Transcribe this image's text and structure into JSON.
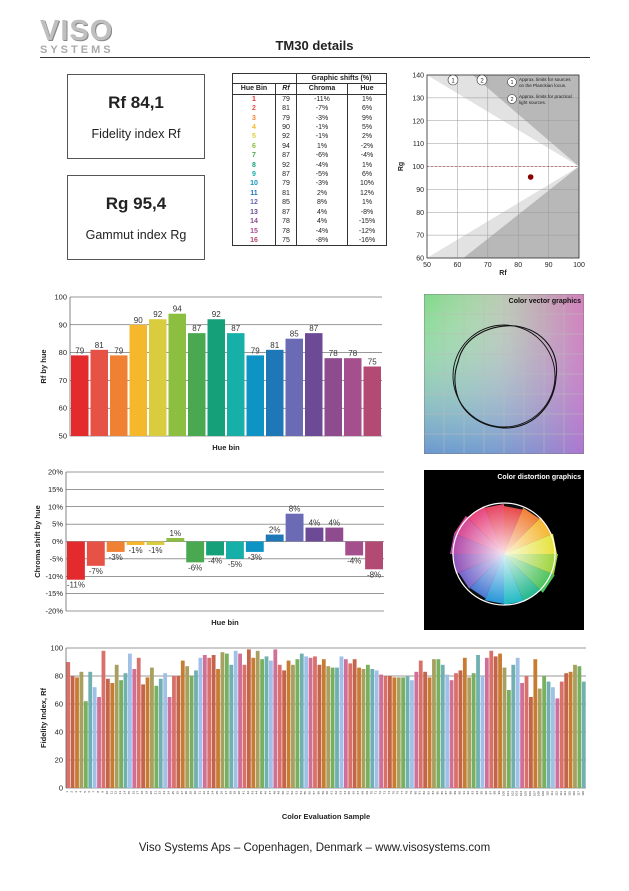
{
  "logo": {
    "line1": "VISO",
    "line2": "SYSTEMS"
  },
  "header": {
    "title": "TM30 details"
  },
  "rf_box": {
    "value": "Rf 84,1",
    "label": "Fidelity index Rf"
  },
  "rg_box": {
    "value": "Rg 95,4",
    "label": "Gammut index Rg"
  },
  "hue_table": {
    "group_header": "Graphic shifts (%)",
    "col_bin": "Hue Bin",
    "col_rf": "Rf",
    "col_chroma": "Chroma",
    "col_hue": "Hue",
    "rows": [
      {
        "bin": "1",
        "rf": "79",
        "chroma": "-11%",
        "hue": "1%"
      },
      {
        "bin": "2",
        "rf": "81",
        "chroma": "-7%",
        "hue": "6%"
      },
      {
        "bin": "3",
        "rf": "79",
        "chroma": "-3%",
        "hue": "9%"
      },
      {
        "bin": "4",
        "rf": "90",
        "chroma": "-1%",
        "hue": "5%"
      },
      {
        "bin": "5",
        "rf": "92",
        "chroma": "-1%",
        "hue": "2%"
      },
      {
        "bin": "6",
        "rf": "94",
        "chroma": "1%",
        "hue": "-2%"
      },
      {
        "bin": "7",
        "rf": "87",
        "chroma": "-6%",
        "hue": "-4%"
      },
      {
        "bin": "8",
        "rf": "92",
        "chroma": "-4%",
        "hue": "1%"
      },
      {
        "bin": "9",
        "rf": "87",
        "chroma": "-5%",
        "hue": "6%"
      },
      {
        "bin": "10",
        "rf": "79",
        "chroma": "-3%",
        "hue": "10%"
      },
      {
        "bin": "11",
        "rf": "81",
        "chroma": "2%",
        "hue": "12%"
      },
      {
        "bin": "12",
        "rf": "85",
        "chroma": "8%",
        "hue": "1%"
      },
      {
        "bin": "13",
        "rf": "87",
        "chroma": "4%",
        "hue": "-8%"
      },
      {
        "bin": "14",
        "rf": "78",
        "chroma": "4%",
        "hue": "-15%"
      },
      {
        "bin": "15",
        "rf": "78",
        "chroma": "-4%",
        "hue": "-12%"
      },
      {
        "bin": "16",
        "rf": "75",
        "chroma": "-8%",
        "hue": "-16%"
      }
    ]
  },
  "hue_colors": [
    "#e32b2e",
    "#e65245",
    "#f08133",
    "#f5b72c",
    "#d9cd3f",
    "#8cbf3f",
    "#4aa850",
    "#16a07a",
    "#17b0a8",
    "#0e94c4",
    "#1e78b7",
    "#6a6bb4",
    "#6d4a96",
    "#8e4c8f",
    "#a64f8d",
    "#b24a74"
  ],
  "chart_data": [
    {
      "type": "scatter",
      "xlabel": "Rf",
      "ylabel": "Rg",
      "xlim": [
        50,
        100
      ],
      "ylim": [
        60,
        140
      ],
      "xticks": [
        50,
        60,
        70,
        80,
        90,
        100
      ],
      "yticks": [
        60,
        70,
        80,
        90,
        100,
        110,
        120,
        130,
        140
      ],
      "points": [
        {
          "x": 84.1,
          "y": 95.4
        }
      ],
      "reference_line_y": 100,
      "legend": [
        {
          "marker": "1",
          "text": "Approx. limits for sources on the Planckian locus."
        },
        {
          "marker": "2",
          "text": "Approx. limits for practical light sources."
        }
      ],
      "markers": [
        "1",
        "2"
      ]
    },
    {
      "type": "bar",
      "xlabel": "Hue bin",
      "ylabel": "Rf by hue",
      "ylim": [
        50,
        100
      ],
      "yticks": [
        50,
        60,
        70,
        80,
        90,
        100
      ],
      "values": [
        79,
        81,
        79,
        90,
        92,
        94,
        87,
        92,
        87,
        79,
        81,
        85,
        87,
        78,
        78,
        75
      ],
      "labels": [
        "79",
        "81",
        "79",
        "90",
        "92",
        "94",
        "87",
        "92",
        "87",
        "79",
        "81",
        "85",
        "87",
        "78",
        "78",
        "75"
      ]
    },
    {
      "type": "bar",
      "xlabel": "Hue bin",
      "ylabel": "Chroma shift by hue",
      "ylim": [
        -20,
        20
      ],
      "yticks": [
        "-20%",
        "-15%",
        "-10%",
        "-5%",
        "0%",
        "5%",
        "10%",
        "15%",
        "20%"
      ],
      "values": [
        -11,
        -7,
        -3,
        -1,
        -1,
        1,
        -6,
        -4,
        -5,
        -3,
        2,
        8,
        4,
        4,
        -4,
        -8
      ],
      "labels": [
        "-11%",
        "-7%",
        "-3%",
        "-1%",
        "-1%",
        "1%",
        "-6%",
        "-4%",
        "-5%",
        "-3%",
        "2%",
        "8%",
        "4%",
        "4%",
        "-4%",
        "-8%"
      ]
    },
    {
      "type": "bar",
      "xlabel": "Color Evaluation Sample",
      "ylabel": "Fidelity Index, Rf",
      "ylim": [
        0,
        100
      ],
      "yticks": [
        0,
        20,
        40,
        60,
        80,
        100
      ],
      "values": [
        90,
        80,
        79,
        83,
        62,
        83,
        72,
        65,
        98,
        78,
        75,
        88,
        77,
        82,
        96,
        85,
        93,
        74,
        79,
        86,
        73,
        78,
        82,
        65,
        80,
        80,
        91,
        87,
        80,
        84,
        93,
        95,
        93,
        95,
        85,
        97,
        96,
        88,
        98,
        96,
        88,
        99,
        93,
        98,
        92,
        94,
        91,
        99,
        88,
        84,
        91,
        88,
        92,
        96,
        94,
        93,
        94,
        88,
        92,
        87,
        86,
        86,
        94,
        92,
        89,
        92,
        86,
        85,
        88,
        85,
        84,
        81,
        80,
        80,
        79,
        79,
        79,
        80,
        77,
        83,
        91,
        83,
        79,
        92,
        92,
        88,
        81,
        77,
        82,
        84,
        93,
        79,
        82,
        95,
        80,
        93,
        98,
        94,
        96,
        86,
        70,
        88,
        93,
        75,
        80,
        65,
        92,
        71,
        80,
        76,
        72,
        64,
        76,
        82,
        83,
        88,
        87,
        76
      ],
      "x_tick_labels": [
        "1",
        "2",
        "3",
        "4",
        "5",
        "6",
        "7",
        "8",
        "9",
        "10",
        "11",
        "12",
        "13",
        "14",
        "15",
        "16",
        "17",
        "18",
        "19",
        "20",
        "21",
        "22",
        "23",
        "24",
        "25",
        "26",
        "27",
        "28",
        "29",
        "30",
        "31",
        "32",
        "33",
        "34",
        "35",
        "36",
        "37",
        "38",
        "39",
        "40",
        "41",
        "42",
        "43",
        "44",
        "45",
        "46",
        "47",
        "48",
        "49",
        "50",
        "51",
        "52",
        "53",
        "54",
        "55",
        "56",
        "57",
        "58",
        "59",
        "60",
        "61",
        "62",
        "63",
        "64",
        "65",
        "66",
        "67",
        "68",
        "69",
        "70",
        "71",
        "72",
        "73",
        "74",
        "75",
        "76",
        "77",
        "78",
        "79",
        "80",
        "81",
        "82",
        "83",
        "84",
        "85",
        "86",
        "87",
        "88",
        "89",
        "90",
        "91",
        "92",
        "93",
        "94",
        "95",
        "96",
        "97",
        "98",
        "99",
        "100",
        "101",
        "102",
        "103",
        "104",
        "105",
        "106",
        "107",
        "108",
        "109",
        "110",
        "111",
        "112",
        "113",
        "114",
        "115",
        "116",
        "117",
        "118"
      ]
    }
  ],
  "vector_graphic": {
    "title": "Color vector graphics"
  },
  "distortion_graphic": {
    "title": "Color distortion graphics"
  },
  "footer": {
    "text": "Viso Systems Aps – Copenhagen, Denmark – www.visosystems.com"
  }
}
